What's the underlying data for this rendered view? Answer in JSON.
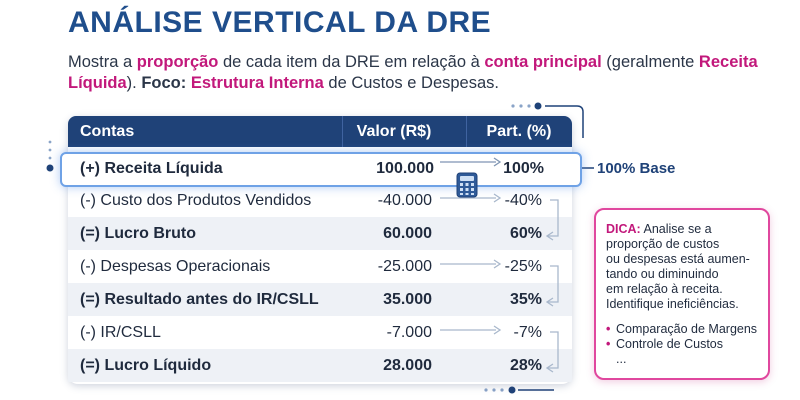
{
  "header": {
    "title": "ANÁLISE VERTICAL DA DRE",
    "subtitle_parts": [
      {
        "text": "Mostra a ",
        "hl": false
      },
      {
        "text": "proporção",
        "hl": true
      },
      {
        "text": " de cada item da DRE em relação à ",
        "hl": false
      },
      {
        "text": "conta principal",
        "hl": true
      },
      {
        "text": " (geralmente ",
        "hl": false
      },
      {
        "text": "Receita Líquida",
        "hl": true
      },
      {
        "text": "). ",
        "hl": false
      },
      {
        "text": "Foco:",
        "hl": "bold"
      },
      {
        "text": " ",
        "hl": false
      },
      {
        "text": "Estrutura Interna",
        "hl": true
      },
      {
        "text": " de Custos e Despesas.",
        "hl": false
      }
    ]
  },
  "table": {
    "headers": [
      "Contas",
      "Valor (R$)",
      "Part. (%)"
    ],
    "rows": [
      {
        "label": "(+) Receita Líquida",
        "value": "100.000",
        "percent": "100%",
        "style": "highlight"
      },
      {
        "label": "(-) Custo dos Produtos Vendidos",
        "value": "-40.000",
        "percent": "-40%",
        "style": "normal"
      },
      {
        "label": "(=) Lucro Bruto",
        "value": "60.000",
        "percent": "60%",
        "style": "bold"
      },
      {
        "label": "(-) Despesas Operacionais",
        "value": "-25.000",
        "percent": "-25%",
        "style": "normal"
      },
      {
        "label": "(=) Resultado antes do IR/CSLL",
        "value": "35.000",
        "percent": "35%",
        "style": "bold"
      },
      {
        "label": "(-) IR/CSLL",
        "value": "-7.000",
        "percent": "-7%",
        "style": "normal"
      },
      {
        "label": "(=) Lucro Líquido",
        "value": "28.000",
        "percent": "28%",
        "style": "bold"
      }
    ]
  },
  "base_label": "100% Base",
  "tip": {
    "title": "DICA:",
    "lines": [
      "Analise se a",
      "proporção de custos",
      "ou despesas está aumen-",
      "tando ou diminuindo",
      "em relação à receita.",
      "Identifique ineficiências."
    ],
    "bullets": [
      "Comparação de Margens",
      "Controle de Custos"
    ],
    "more": "..."
  },
  "colors": {
    "title": "#1f4e8c",
    "accent": "#c2187b",
    "header_bg": "#1f4278",
    "highlight_border": "#6fa2e6"
  },
  "icons": [
    "calculator-icon",
    "arrow-right-icon",
    "bracket-arrow-icon",
    "dotted-connector-icon"
  ]
}
